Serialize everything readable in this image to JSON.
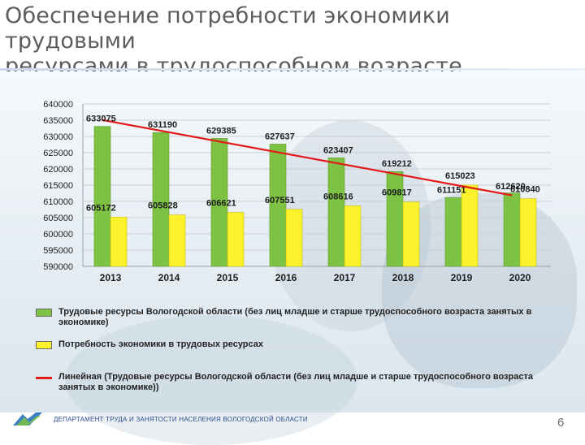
{
  "slide": {
    "title_line1": "Обеспечение потребности экономики трудовыми",
    "title_line2": "ресурсами в трудоспособном возрасте"
  },
  "chart_data": {
    "type": "bar",
    "categories": [
      "2013",
      "2014",
      "2015",
      "2016",
      "2017",
      "2018",
      "2019",
      "2020"
    ],
    "ylim": [
      590000,
      640000
    ],
    "ytick_step": 5000,
    "y_ticks": [
      "640000",
      "635000",
      "630000",
      "625000",
      "620000",
      "615000",
      "610000",
      "605000",
      "600000",
      "595000",
      "590000"
    ],
    "grid": true,
    "legend_position": "bottom",
    "series": [
      {
        "name": "Трудовые ресурсы Вологодской области (без лиц младше и старше трудоспособного возраста занятых в экономике)",
        "color": "#7dc242",
        "values": [
          633075,
          631190,
          629385,
          627637,
          623407,
          619212,
          611151,
          612620
        ],
        "labels": [
          "633075",
          "631190",
          "629385",
          "627637",
          "623407",
          "619212",
          "611151",
          "612620"
        ]
      },
      {
        "name": "Потребность экономики в трудовых ресурсах",
        "color": "#fbf22b",
        "values": [
          605172,
          605828,
          606621,
          607551,
          608616,
          609817,
          615023,
          610840
        ],
        "labels": [
          "605172",
          "605828",
          "606621",
          "607551",
          "608616",
          "609817",
          "615023",
          "610840"
        ]
      }
    ],
    "trendline": {
      "name": "Линейная (Трудовые ресурсы Вологодской области (без лиц младше и старше трудоспособного возраста занятых в экономике))",
      "color": "#e31b1b"
    }
  },
  "legend": {
    "green_label": "Трудовые ресурсы Вологодской области (без лиц младше и старше трудоспособного возраста занятых в экономике)",
    "yellow_label": "Потребность экономики в трудовых ресурсах",
    "trend_label": "Линейная (Трудовые ресурсы Вологодской области (без лиц младше и старше трудоспособного возраста занятых в экономике))"
  },
  "footer": {
    "department": "ДЕПАРТАМЕНТ ТРУДА И ЗАНЯТОСТИ НАСЕЛЕНИЯ ВОЛОГОДСКОЙ ОБЛАСТИ",
    "page_number": "6",
    "logo_icon": "department-logo-icon"
  }
}
